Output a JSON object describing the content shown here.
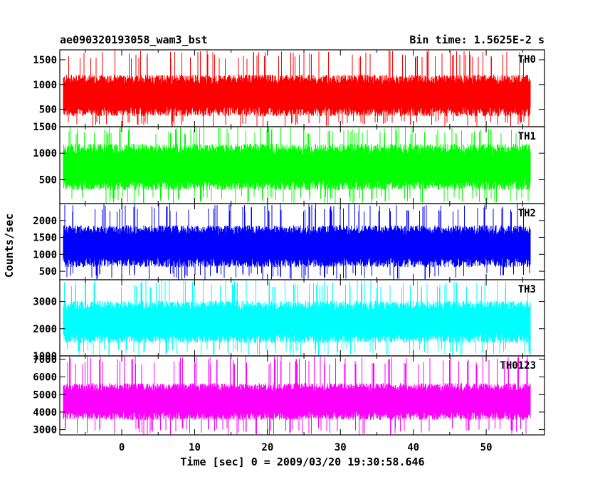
{
  "header": {
    "left_title": "ae090320193058_wam3_bst",
    "right_title": "Bin time: 1.5625E-2 s"
  },
  "chart_data": {
    "type": "line",
    "xlabel": "Time [sec] 0 = 2009/03/20 19:30:58.646",
    "ylabel": "Counts/sec",
    "xlim": [
      -8.5,
      58
    ],
    "data_xrange": [
      -8,
      56
    ],
    "xticks": [
      0,
      10,
      20,
      30,
      40,
      50
    ],
    "panels": [
      {
        "name": "TH0",
        "color": "#ff0000",
        "ylim": [
          150,
          1700
        ],
        "yticks": [
          500,
          1000,
          1500
        ],
        "band": {
          "base": 780,
          "noise": 420,
          "max_outlier": 1700,
          "min_outlier": 150
        }
      },
      {
        "name": "TH1",
        "color": "#00ff00",
        "ylim": [
          50,
          1500
        ],
        "yticks": [
          500,
          1000,
          1500
        ],
        "band": {
          "base": 740,
          "noise": 440,
          "max_outlier": 1500,
          "min_outlier": 50
        }
      },
      {
        "name": "TH2",
        "color": "#0000ff",
        "ylim": [
          250,
          2500
        ],
        "yticks": [
          500,
          1000,
          1500,
          2000
        ],
        "band": {
          "base": 1240,
          "noise": 620,
          "max_outlier": 2500,
          "min_outlier": 250
        }
      },
      {
        "name": "TH3",
        "color": "#00ffff",
        "ylim": [
          1000,
          3800
        ],
        "yticks": [
          1000,
          2000,
          3000
        ],
        "band": {
          "base": 2250,
          "noise": 780,
          "max_outlier": 3800,
          "min_outlier": 1000
        }
      },
      {
        "name": "TH0123",
        "color": "#ff00ff",
        "ylim": [
          2700,
          7200
        ],
        "yticks": [
          3000,
          4000,
          5000,
          6000,
          7000
        ],
        "band": {
          "base": 4600,
          "noise": 1050,
          "max_outlier": 7200,
          "min_outlier": 2700
        }
      }
    ]
  }
}
